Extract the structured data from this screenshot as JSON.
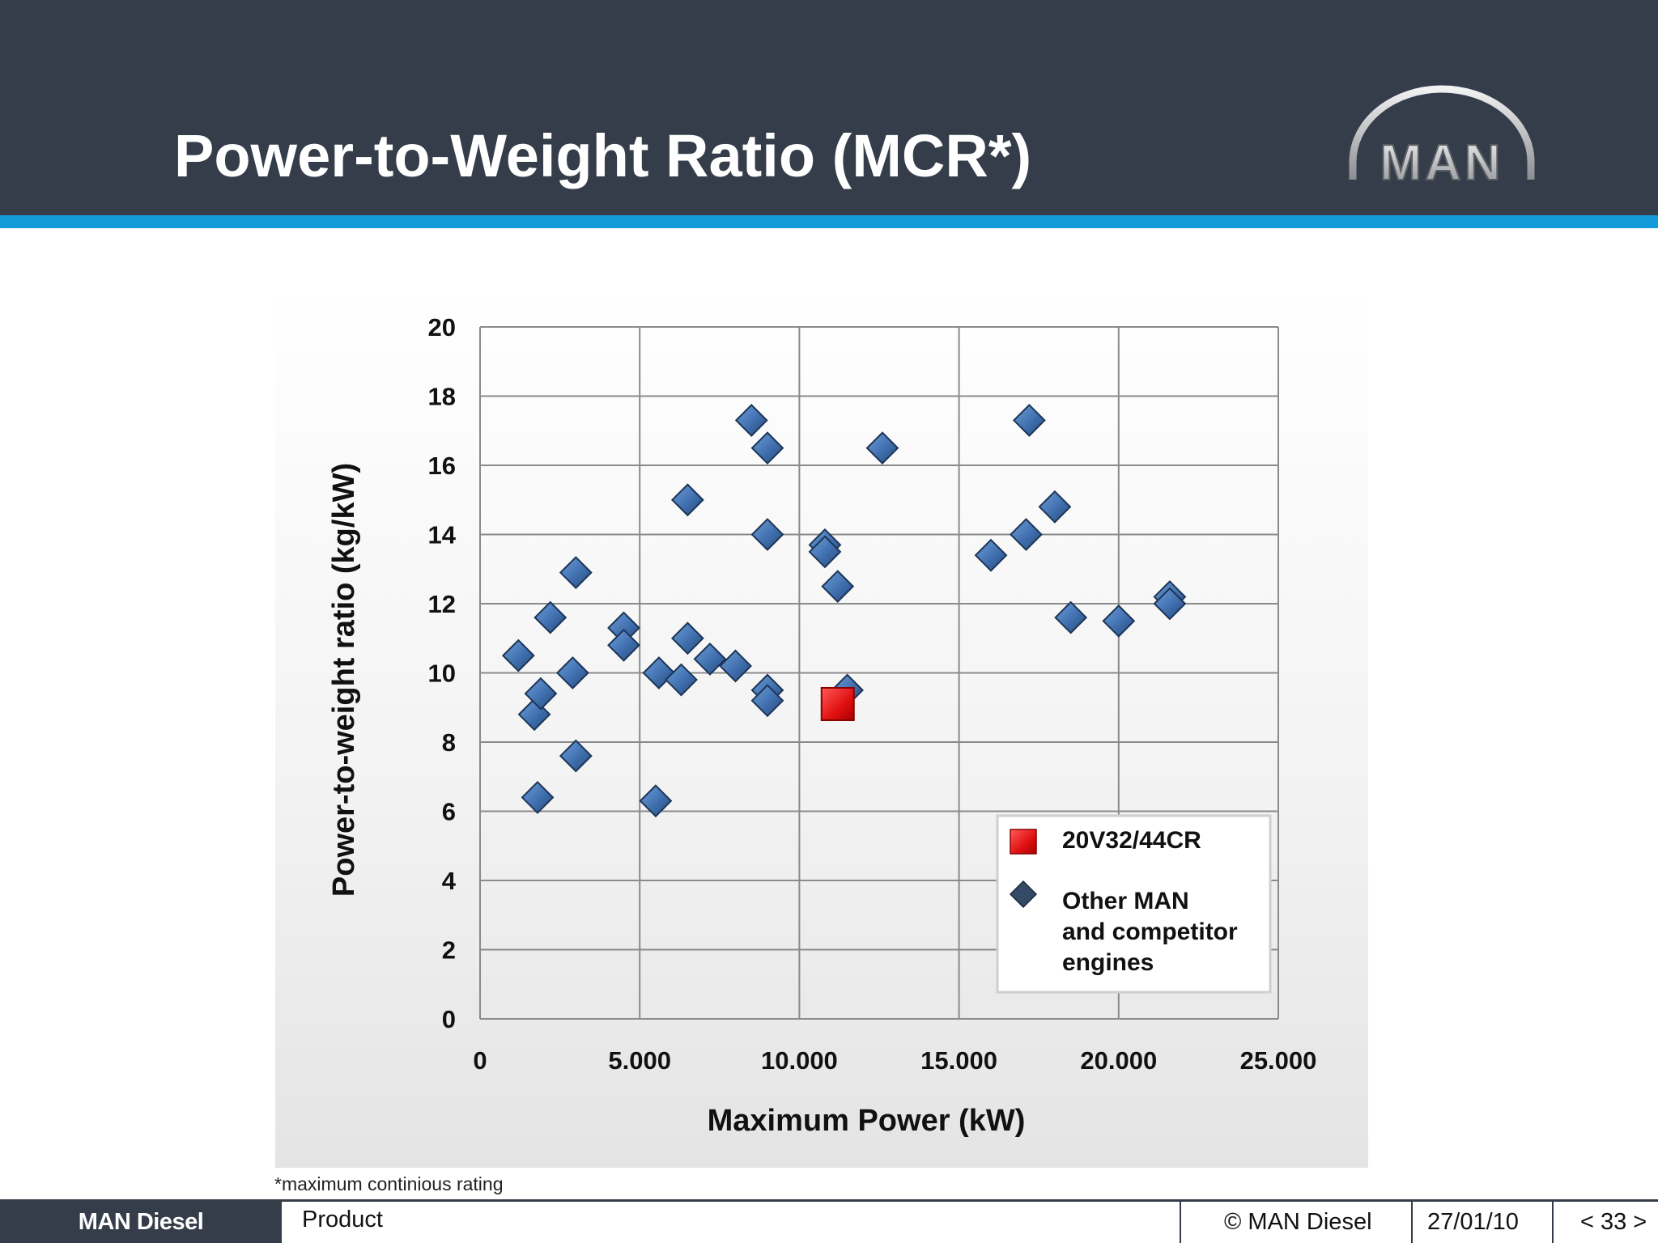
{
  "header": {
    "title": "Power-to-Weight Ratio (MCR*)",
    "logo_text": "MAN"
  },
  "colors": {
    "header_bg": "#343d49",
    "accent_stripe": "#139bd9",
    "marker_other": "#3f6fae",
    "marker_highlight": "#e01010"
  },
  "chart_data": {
    "type": "scatter",
    "title": "",
    "xlabel": "Maximum Power (kW)",
    "ylabel": "Power-to-weight ratio (kg/kW)",
    "xlim": [
      0,
      25000
    ],
    "ylim": [
      0,
      20
    ],
    "x_ticks": [
      "0",
      "5.000",
      "10.000",
      "15.000",
      "20.000",
      "25.000"
    ],
    "y_ticks": [
      "0",
      "2",
      "4",
      "6",
      "8",
      "10",
      "12",
      "14",
      "16",
      "18",
      "20"
    ],
    "grid": true,
    "legend_position": "bottom-right",
    "series": [
      {
        "name": "Other MAN and competitor engines",
        "legend_lines": [
          "Other MAN",
          "and competitor",
          "engines"
        ],
        "marker": "diamond",
        "points": [
          [
            1200,
            10.5
          ],
          [
            1700,
            8.8
          ],
          [
            1800,
            6.4
          ],
          [
            1900,
            9.4
          ],
          [
            2200,
            11.6
          ],
          [
            2900,
            10.0
          ],
          [
            3000,
            7.6
          ],
          [
            3000,
            12.9
          ],
          [
            4500,
            11.3
          ],
          [
            4500,
            10.8
          ],
          [
            5500,
            6.3
          ],
          [
            5600,
            10.0
          ],
          [
            6300,
            9.8
          ],
          [
            6500,
            11.0
          ],
          [
            6500,
            15.0
          ],
          [
            7200,
            10.4
          ],
          [
            8000,
            10.2
          ],
          [
            8500,
            17.3
          ],
          [
            9000,
            16.5
          ],
          [
            9000,
            14.0
          ],
          [
            9000,
            9.5
          ],
          [
            9000,
            9.2
          ],
          [
            10800,
            13.7
          ],
          [
            10800,
            13.5
          ],
          [
            11200,
            12.5
          ],
          [
            11500,
            9.5
          ],
          [
            12600,
            16.5
          ],
          [
            16000,
            13.4
          ],
          [
            17100,
            14.0
          ],
          [
            17200,
            17.3
          ],
          [
            18000,
            14.8
          ],
          [
            18500,
            11.6
          ],
          [
            20000,
            11.5
          ],
          [
            21600,
            12.2
          ],
          [
            21600,
            12.0
          ]
        ]
      },
      {
        "name": "20V32/44CR",
        "marker": "square",
        "points": [
          [
            11200,
            9.1
          ]
        ]
      }
    ]
  },
  "footnote": "*maximum continious rating",
  "footer": {
    "brand": "MAN Diesel",
    "section": "Product",
    "copyright": "© MAN Diesel",
    "date": "27/01/10",
    "page": "< 33 >"
  }
}
